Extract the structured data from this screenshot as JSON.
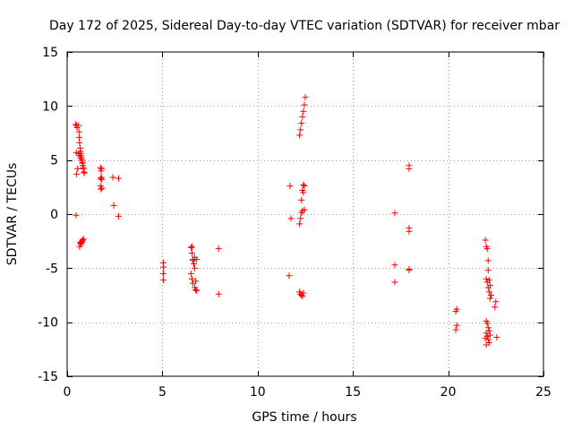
{
  "chart_data": {
    "type": "scatter",
    "title": "Day 172 of 2025, Sidereal Day-to-day VTEC variation (SDTVAR) for receiver mbar",
    "xlabel": "GPS time / hours",
    "ylabel": "SDTVAR / TECUs",
    "xlim": [
      0,
      25
    ],
    "ylim": [
      -15,
      15
    ],
    "xticks": [
      0,
      5,
      10,
      15,
      20,
      25
    ],
    "yticks": [
      -15,
      -10,
      -5,
      0,
      5,
      10,
      15
    ],
    "grid": true,
    "marker": "plus",
    "color": "#ff0000",
    "series": [
      {
        "name": "SDTVAR",
        "x": [
          0.45,
          0.5,
          0.52,
          0.48,
          0.55,
          0.5,
          0.47,
          0.6,
          0.62,
          0.63,
          0.65,
          0.68,
          0.7,
          0.72,
          0.74,
          0.76,
          0.78,
          0.8,
          0.82,
          0.85,
          0.88,
          0.6,
          0.65,
          0.7,
          0.75,
          0.8,
          0.85,
          0.9,
          0.68,
          0.72,
          0.78,
          0.82,
          0.65,
          0.72,
          0.78,
          0.86,
          1.75,
          1.78,
          1.8,
          1.82,
          1.75,
          1.78,
          1.8,
          1.76,
          1.82,
          2.4,
          2.7,
          2.45,
          2.7,
          5.05,
          5.05,
          5.05,
          5.05,
          6.5,
          6.55,
          6.6,
          6.65,
          6.7,
          6.5,
          6.55,
          6.6,
          6.7,
          6.75,
          6.8,
          6.55,
          6.6,
          6.65,
          6.7,
          6.8,
          6.75,
          7.95,
          7.95,
          11.7,
          11.75,
          11.65,
          12.2,
          12.25,
          12.3,
          12.35,
          12.4,
          12.45,
          12.5,
          12.2,
          12.25,
          12.3,
          12.35,
          12.4,
          12.45,
          12.2,
          12.25,
          12.3,
          12.35,
          12.4,
          12.3,
          12.35,
          12.4,
          12.45,
          17.2,
          17.2,
          17.2,
          17.95,
          17.95,
          17.95,
          17.95,
          17.95,
          17.95,
          20.45,
          20.4,
          20.45,
          20.4,
          21.95,
          22.0,
          22.05,
          22.1,
          22.1,
          22.15,
          22.2,
          22.25,
          22.0,
          22.05,
          22.1,
          22.15,
          22.2,
          22.0,
          22.05,
          22.1,
          22.15,
          22.0,
          22.05,
          22.1,
          22.15,
          22.2,
          22.5,
          22.45,
          22.55,
          22.0,
          21.95
        ],
        "y": [
          8.3,
          8.2,
          8.0,
          5.7,
          4.2,
          3.7,
          -0.1,
          8.2,
          7.6,
          7.1,
          6.6,
          6.1,
          5.8,
          5.6,
          5.4,
          5.2,
          5.0,
          4.8,
          4.5,
          4.2,
          3.9,
          5.6,
          5.4,
          5.2,
          5.0,
          4.7,
          4.3,
          3.8,
          -2.6,
          -2.8,
          -2.5,
          -2.4,
          -3.0,
          -2.7,
          -2.6,
          -2.3,
          4.3,
          4.0,
          3.4,
          3.2,
          2.6,
          2.3,
          4.2,
          3.3,
          2.4,
          3.4,
          3.3,
          0.8,
          -0.2,
          -4.5,
          -4.9,
          -5.5,
          -6.1,
          -3.1,
          -3.6,
          -4.2,
          -4.6,
          -5.0,
          -5.5,
          -6.0,
          -6.4,
          -6.8,
          -7.0,
          -7.1,
          -3.0,
          -4.3,
          -4.6,
          -4.0,
          -4.2,
          -6.2,
          -3.2,
          -7.4,
          2.6,
          -0.4,
          -5.7,
          7.3,
          7.8,
          8.4,
          9.0,
          9.5,
          10.1,
          10.8,
          -0.9,
          -0.4,
          0.1,
          0.3,
          2.0,
          2.6,
          -7.2,
          -7.4,
          -7.5,
          -7.6,
          -7.3,
          1.3,
          2.2,
          2.7,
          0.4,
          0.1,
          -4.7,
          -6.3,
          4.5,
          4.2,
          -1.3,
          -1.6,
          -5.1,
          -5.2,
          -8.8,
          -9.0,
          -10.3,
          -10.7,
          -2.4,
          -3.0,
          -3.2,
          -4.3,
          -5.2,
          -6.1,
          -6.6,
          -7.5,
          -6.0,
          -6.3,
          -6.8,
          -7.2,
          -7.8,
          -9.9,
          -10.1,
          -10.5,
          -10.8,
          -11.0,
          -11.3,
          -11.6,
          -11.9,
          -11.2,
          -8.1,
          -8.6,
          -11.4,
          -12.1,
          -11.5
        ]
      }
    ]
  }
}
